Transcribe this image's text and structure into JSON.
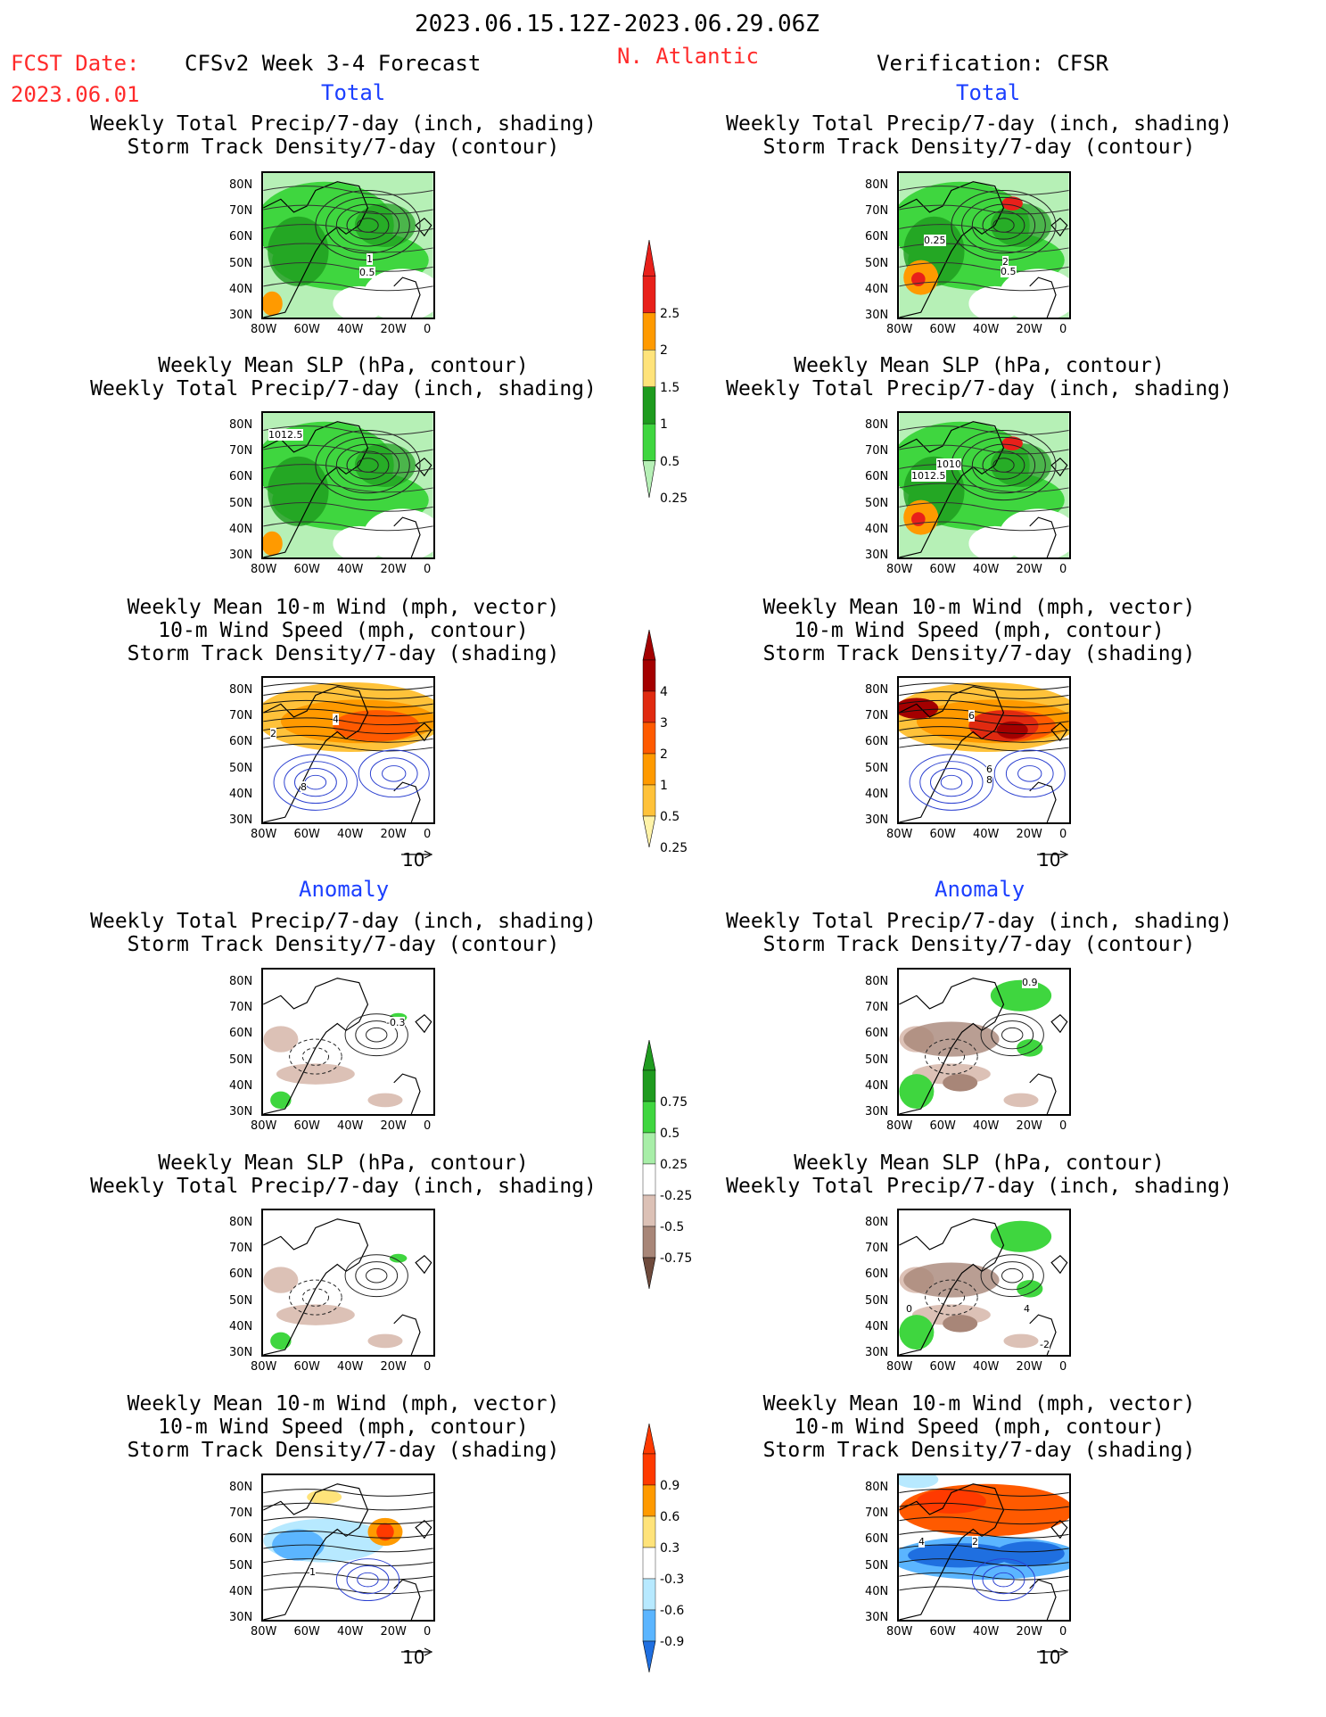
{
  "header": {
    "date_range": "2023.06.15.12Z-2023.06.29.06Z",
    "fcst_label": "FCST Date:",
    "fcst_date": "2023.06.01",
    "model": "CFSv2 Week 3-4 Forecast",
    "region": "N. Atlantic",
    "verification": "Verification: CFSR",
    "total_left": "Total",
    "total_right": "Total",
    "anomaly_left": "Anomaly",
    "anomaly_right": "Anomaly"
  },
  "titles": {
    "precip_storm": [
      "Weekly Total Precip/7-day (inch, shading)",
      "Storm Track Density/7-day (contour)"
    ],
    "slp_precip": [
      "Weekly Mean SLP (hPa, contour)",
      "Weekly Total Precip/7-day (inch, shading)"
    ],
    "wind_storm": [
      "Weekly Mean 10-m Wind (mph, vector)",
      "10-m Wind Speed (mph, contour)",
      "Storm Track Density/7-day (shading)"
    ]
  },
  "axes": {
    "lat_ticks": [
      "80N",
      "70N",
      "60N",
      "50N",
      "40N",
      "30N"
    ],
    "lon_ticks": [
      "80W",
      "60W",
      "40W",
      "20W",
      "0"
    ]
  },
  "vector_ref": "10",
  "map_labels": {
    "p1": [
      "1",
      "0.5"
    ],
    "p2": [
      "0.25",
      "2",
      "0.5"
    ],
    "p3": [
      "1012.5"
    ],
    "p4": [
      "1010",
      "1012.5"
    ],
    "p5": [
      "4",
      "2",
      "8"
    ],
    "p6": [
      "6",
      "6",
      "8"
    ],
    "p7": [
      "-0.3"
    ],
    "p8": [
      "0.9"
    ],
    "p10": [
      "4",
      "-2",
      "0"
    ],
    "p11": [
      "1"
    ],
    "p12": [
      "4",
      "2"
    ]
  },
  "colorbars": {
    "precip_total": {
      "labels": [
        "2.5",
        "2",
        "1.5",
        "1",
        "0.5",
        "0.25"
      ],
      "colors": [
        "#e8201a",
        "#ff9a00",
        "#ffe37a",
        "#1e9b1e",
        "#3fd63f",
        "#b6f0b6"
      ]
    },
    "storm_total": {
      "labels": [
        "4",
        "3",
        "2",
        "1",
        "0.5",
        "0.25"
      ],
      "colors": [
        "#a40000",
        "#e02a10",
        "#ff5a00",
        "#ff9a00",
        "#ffc23a",
        "#fff3a8"
      ]
    },
    "precip_anom": {
      "labels": [
        "0.75",
        "0.5",
        "0.25",
        "-0.25",
        "-0.5",
        "-0.75"
      ],
      "colors": [
        "#1f9b1f",
        "#3fd63f",
        "#a8eea8",
        "#ffffff",
        "#dcc1b6",
        "#a88678",
        "#6e4a3c"
      ]
    },
    "storm_anom": {
      "labels": [
        "0.9",
        "0.6",
        "0.3",
        "-0.3",
        "-0.6",
        "-0.9"
      ],
      "colors": [
        "#ff3a00",
        "#ff9a00",
        "#ffe37a",
        "#ffffff",
        "#b7e9ff",
        "#5bb5ff",
        "#1f6fe0"
      ]
    }
  }
}
